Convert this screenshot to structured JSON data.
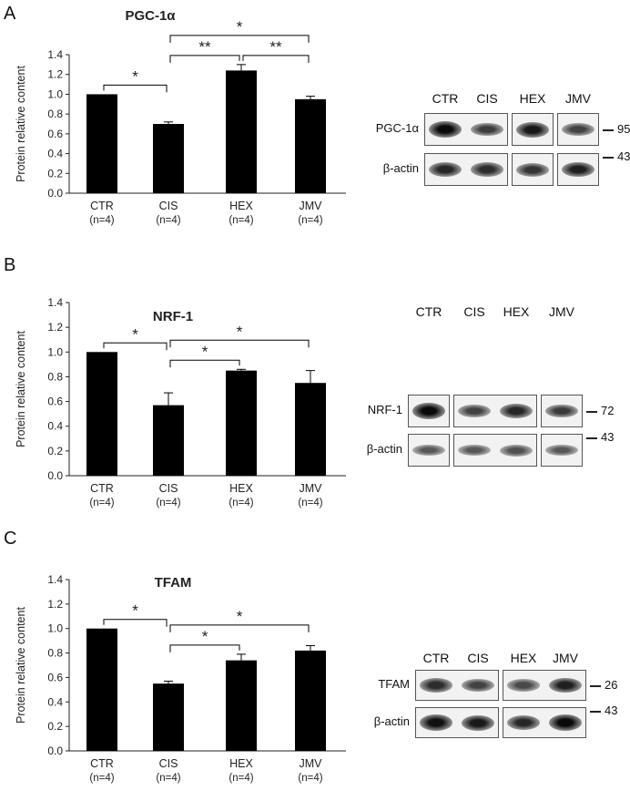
{
  "chart_data": [
    {
      "type": "bar",
      "panel": "A",
      "title": "PGC-1α",
      "ylabel": "Protein relative content",
      "ylim": [
        0,
        1.4
      ],
      "yticks": [
        "0.0",
        "0.2",
        "0.4",
        "0.6",
        "0.8",
        "1.0",
        "1.2",
        "1.4"
      ],
      "categories": [
        "CTR",
        "CIS",
        "HEX",
        "JMV"
      ],
      "category_sublabels": [
        "(n=4)",
        "(n=4)",
        "(n=4)",
        "(n=4)"
      ],
      "values": [
        1.0,
        0.7,
        1.24,
        0.95
      ],
      "errors": [
        0.0,
        0.02,
        0.06,
        0.03
      ],
      "significance": [
        {
          "from": "CTR",
          "to": "CIS",
          "label": "*"
        },
        {
          "from": "CIS",
          "to": "HEX",
          "label": "**"
        },
        {
          "from": "HEX",
          "to": "JMV",
          "label": "**"
        },
        {
          "from": "CIS",
          "to": "JMV",
          "label": "*"
        }
      ],
      "blot": {
        "lanes": [
          "CTR",
          "CIS",
          "HEX",
          "JMV"
        ],
        "rows": [
          {
            "label": "PGC-1α",
            "mw": "95",
            "intensity": [
              1.0,
              0.65,
              0.9,
              0.6
            ]
          },
          {
            "label": "β-actin",
            "mw": "43",
            "intensity": [
              0.8,
              0.75,
              0.7,
              0.85
            ]
          }
        ]
      }
    },
    {
      "type": "bar",
      "panel": "B",
      "title": "NRF-1",
      "ylabel": "Protein relative content",
      "ylim": [
        0,
        1.4
      ],
      "yticks": [
        "0.0",
        "0.2",
        "0.4",
        "0.6",
        "0.8",
        "1.0",
        "1.2",
        "1.4"
      ],
      "categories": [
        "CTR",
        "CIS",
        "HEX",
        "JMV"
      ],
      "category_sublabels": [
        "(n=4)",
        "(n=4)",
        "(n=4)",
        "(n=4)"
      ],
      "values": [
        1.0,
        0.57,
        0.85,
        0.75
      ],
      "errors": [
        0.0,
        0.1,
        0.01,
        0.1
      ],
      "significance": [
        {
          "from": "CTR",
          "to": "CIS",
          "label": "*"
        },
        {
          "from": "CIS",
          "to": "HEX",
          "label": "*"
        },
        {
          "from": "CIS",
          "to": "JMV",
          "label": "*"
        }
      ],
      "blot": {
        "lanes": [
          "CTR",
          "CIS",
          "HEX",
          "JMV"
        ],
        "rows": [
          {
            "label": "NRF-1",
            "mw": "72",
            "intensity": [
              1.0,
              0.6,
              0.8,
              0.65
            ]
          },
          {
            "label": "β-actin",
            "mw": "43",
            "intensity": [
              0.45,
              0.45,
              0.5,
              0.45
            ]
          }
        ]
      }
    },
    {
      "type": "bar",
      "panel": "C",
      "title": "TFAM",
      "ylabel": "Protein relative content",
      "ylim": [
        0,
        1.4
      ],
      "yticks": [
        "0.0",
        "0.2",
        "0.4",
        "0.6",
        "0.8",
        "1.0",
        "1.2",
        "1.4"
      ],
      "categories": [
        "CTR",
        "CIS",
        "HEX",
        "JMV"
      ],
      "category_sublabels": [
        "(n=4)",
        "(n=4)",
        "(n=4)",
        "(n=4)"
      ],
      "values": [
        1.0,
        0.55,
        0.74,
        0.82
      ],
      "errors": [
        0.0,
        0.02,
        0.05,
        0.04
      ],
      "significance": [
        {
          "from": "CTR",
          "to": "CIS",
          "label": "*"
        },
        {
          "from": "CIS",
          "to": "HEX",
          "label": "*"
        },
        {
          "from": "CIS",
          "to": "JMV",
          "label": "*"
        }
      ],
      "blot": {
        "lanes": [
          "CTR",
          "CIS",
          "HEX",
          "JMV"
        ],
        "rows": [
          {
            "label": "TFAM",
            "mw": "26",
            "intensity": [
              0.75,
              0.6,
              0.55,
              0.85
            ]
          },
          {
            "label": "β-actin",
            "mw": "43",
            "intensity": [
              0.95,
              0.9,
              0.8,
              1.0
            ]
          }
        ]
      }
    }
  ]
}
